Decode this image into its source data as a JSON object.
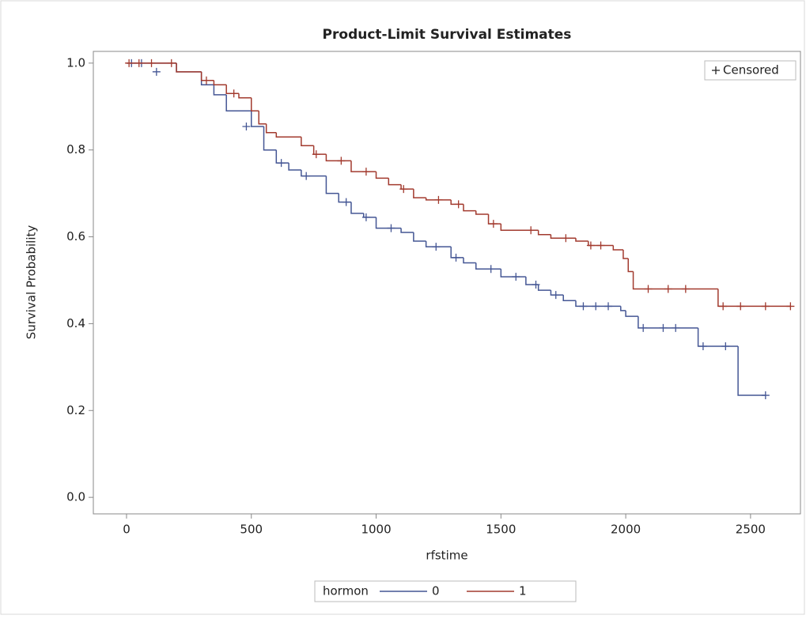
{
  "chart_data": {
    "type": "step",
    "title": "Product-Limit Survival Estimates",
    "x_label": "rfstime",
    "y_label": "Survival Probability",
    "xlim": [
      -133,
      2700
    ],
    "ylim": [
      -0.038,
      1.027
    ],
    "xticks": [
      0,
      500,
      1000,
      1500,
      2000,
      2500
    ],
    "yticks": [
      {
        "value": 0,
        "label": "0.0"
      },
      0.2,
      0.4,
      0.6,
      0.8,
      {
        "value": 1,
        "label": "1.0"
      }
    ],
    "censored_label": "Censored",
    "legend_title": "hormon",
    "series": [
      {
        "name": "0",
        "color": "#445694",
        "x": [
          0,
          200,
          300,
          350,
          400,
          500,
          550,
          600,
          650,
          700,
          800,
          850,
          900,
          950,
          1000,
          1100,
          1150,
          1200,
          1300,
          1350,
          1400,
          1500,
          1600,
          1650,
          1700,
          1750,
          1800,
          1980,
          2000,
          2050,
          2290,
          2450
        ],
        "values": [
          1.0,
          0.98,
          0.95,
          0.927,
          0.89,
          0.854,
          0.8,
          0.77,
          0.754,
          0.74,
          0.7,
          0.68,
          0.654,
          0.645,
          0.62,
          0.61,
          0.59,
          0.577,
          0.552,
          0.54,
          0.526,
          0.508,
          0.49,
          0.477,
          0.466,
          0.453,
          0.44,
          0.43,
          0.417,
          0.39,
          0.348,
          0.235
        ],
        "censored_x": [
          20,
          60,
          120,
          480,
          620,
          720,
          880,
          960,
          1060,
          1240,
          1320,
          1460,
          1560,
          1640,
          1720,
          1830,
          1880,
          1930,
          2070,
          2150,
          2200,
          2310,
          2400,
          2560
        ],
        "censored_values": [
          1.0,
          1.0,
          0.98,
          0.854,
          0.77,
          0.74,
          0.68,
          0.645,
          0.62,
          0.577,
          0.552,
          0.526,
          0.508,
          0.49,
          0.466,
          0.44,
          0.44,
          0.44,
          0.39,
          0.39,
          0.39,
          0.348,
          0.348,
          0.235
        ]
      },
      {
        "name": "1",
        "color": "#a23a2e",
        "x": [
          0,
          200,
          300,
          350,
          400,
          450,
          500,
          530,
          560,
          600,
          700,
          750,
          800,
          900,
          1000,
          1050,
          1100,
          1150,
          1200,
          1300,
          1350,
          1400,
          1450,
          1500,
          1650,
          1700,
          1800,
          1850,
          1950,
          1990,
          2010,
          2030,
          2370
        ],
        "values": [
          1.0,
          0.98,
          0.96,
          0.95,
          0.93,
          0.92,
          0.89,
          0.86,
          0.84,
          0.83,
          0.81,
          0.79,
          0.775,
          0.75,
          0.735,
          0.72,
          0.71,
          0.69,
          0.685,
          0.675,
          0.66,
          0.652,
          0.63,
          0.615,
          0.605,
          0.597,
          0.59,
          0.58,
          0.57,
          0.55,
          0.52,
          0.48,
          0.44
        ],
        "censored_x": [
          10,
          50,
          100,
          180,
          320,
          430,
          760,
          860,
          960,
          1110,
          1250,
          1330,
          1470,
          1620,
          1760,
          1860,
          1900,
          2090,
          2170,
          2240,
          2390,
          2460,
          2560,
          2660
        ],
        "censored_values": [
          1.0,
          1.0,
          1.0,
          1.0,
          0.96,
          0.93,
          0.79,
          0.775,
          0.75,
          0.71,
          0.685,
          0.675,
          0.63,
          0.615,
          0.597,
          0.58,
          0.58,
          0.48,
          0.48,
          0.48,
          0.44,
          0.44,
          0.44,
          0.44
        ]
      }
    ]
  }
}
